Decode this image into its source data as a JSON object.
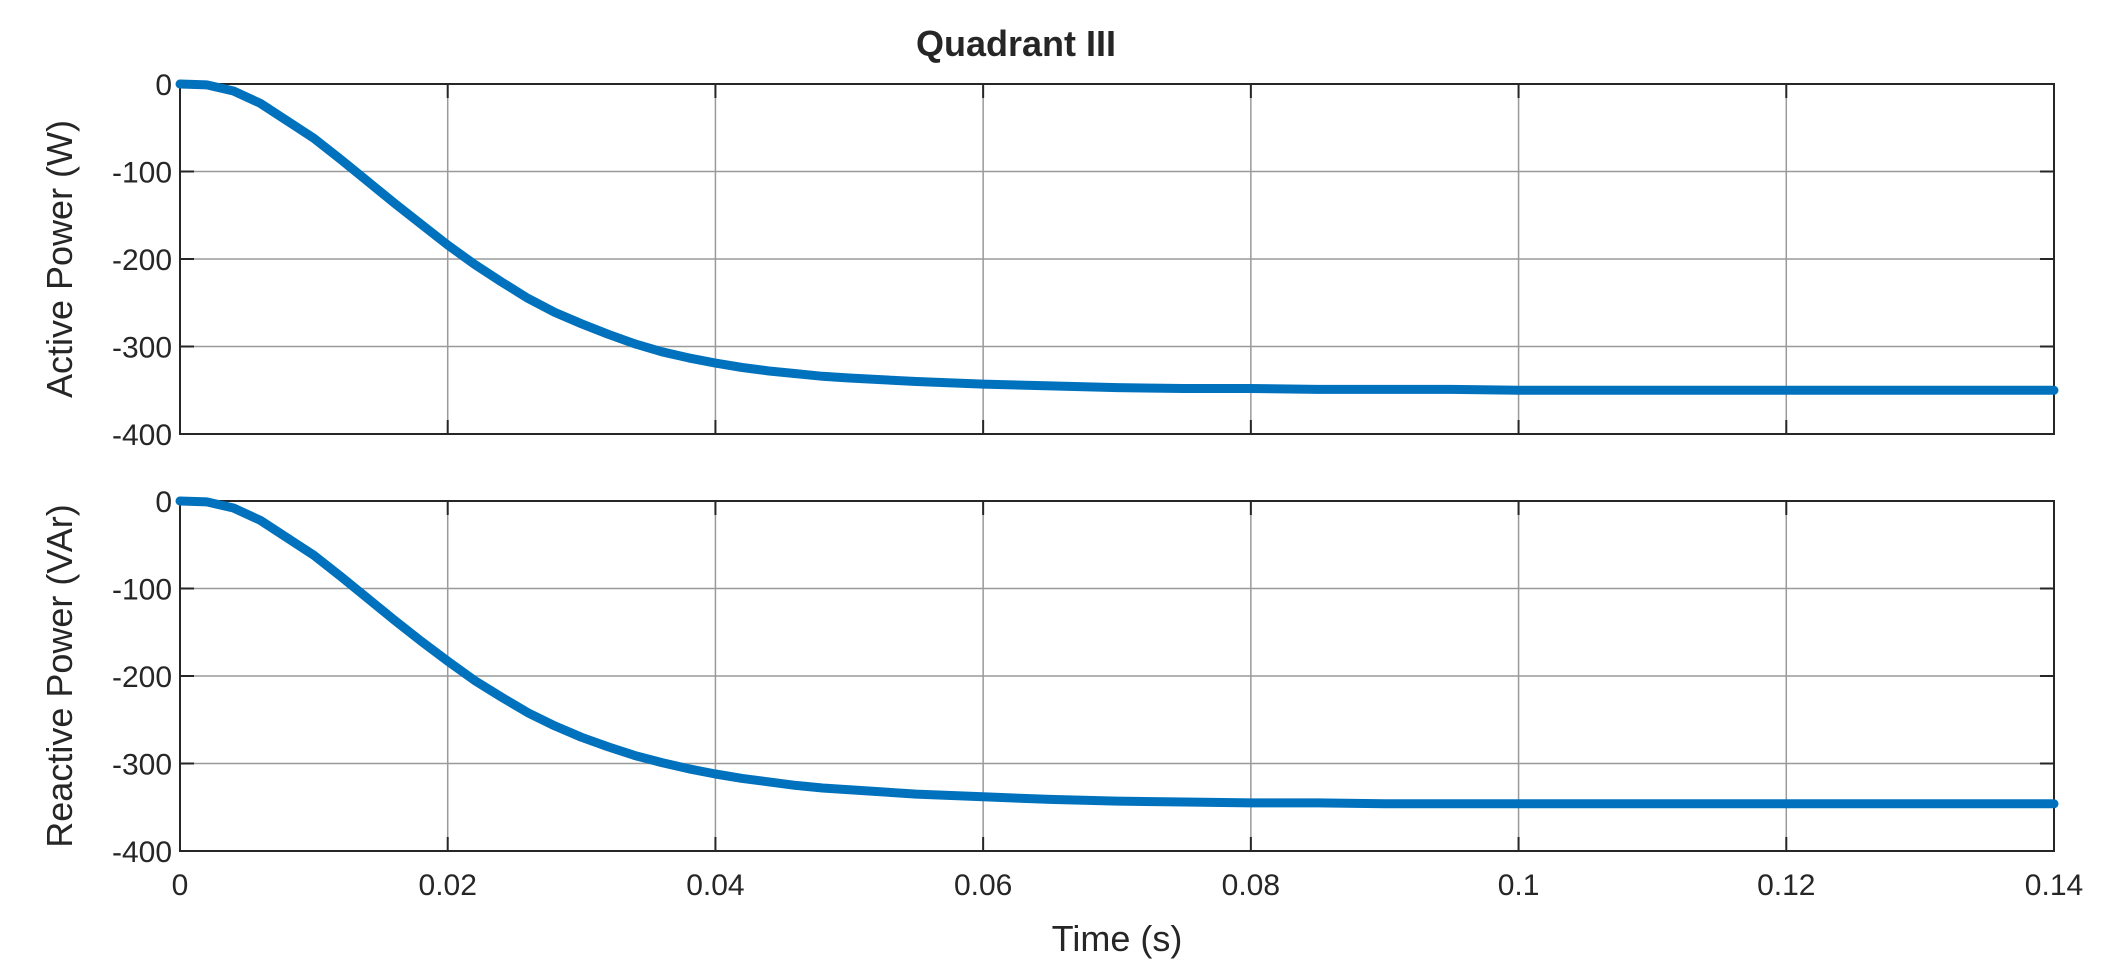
{
  "title": "Quadrant III",
  "line_color": "#0072BD",
  "chart_data": [
    {
      "type": "line",
      "title": "Quadrant III",
      "xlabel": "",
      "ylabel": "Active Power (W)",
      "xlim": [
        0,
        0.14
      ],
      "ylim": [
        -400,
        0
      ],
      "xticks": [
        0,
        0.02,
        0.04,
        0.06,
        0.08,
        0.1,
        0.12,
        0.14
      ],
      "xtick_labels": [
        "",
        "",
        "",
        "",
        "",
        "",
        "",
        ""
      ],
      "yticks": [
        0,
        -100,
        -200,
        -300,
        -400
      ],
      "ytick_labels": [
        "0",
        "-100",
        "-200",
        "-300",
        "-400"
      ],
      "grid": true,
      "series": [
        {
          "color": "#0072BD",
          "x": [
            0,
            0.002,
            0.004,
            0.006,
            0.008,
            0.01,
            0.012,
            0.014,
            0.016,
            0.018,
            0.02,
            0.022,
            0.024,
            0.026,
            0.028,
            0.03,
            0.032,
            0.034,
            0.036,
            0.038,
            0.04,
            0.042,
            0.044,
            0.046,
            0.048,
            0.05,
            0.055,
            0.06,
            0.065,
            0.07,
            0.075,
            0.08,
            0.085,
            0.09,
            0.095,
            0.1,
            0.105,
            0.11,
            0.115,
            0.12,
            0.125,
            0.13,
            0.135,
            0.14
          ],
          "y": [
            0,
            -1,
            -8,
            -22,
            -42,
            -62,
            -86,
            -111,
            -136,
            -160,
            -184,
            -206,
            -226,
            -245,
            -261,
            -274,
            -286,
            -297,
            -306,
            -313,
            -319,
            -324,
            -328,
            -331,
            -334,
            -336,
            -340,
            -343,
            -345,
            -347,
            -348,
            -348,
            -349,
            -349,
            -349,
            -350,
            -350,
            -350,
            -350,
            -350,
            -350,
            -350,
            -350,
            -350
          ]
        }
      ]
    },
    {
      "type": "line",
      "xlabel": "Time (s)",
      "ylabel": "Reactive Power (VAr)",
      "xlim": [
        0,
        0.14
      ],
      "ylim": [
        -400,
        0
      ],
      "xticks": [
        0,
        0.02,
        0.04,
        0.06,
        0.08,
        0.1,
        0.12,
        0.14
      ],
      "xtick_labels": [
        "0",
        "0.02",
        "0.04",
        "0.06",
        "0.08",
        "0.1",
        "0.12",
        "0.14"
      ],
      "yticks": [
        0,
        -100,
        -200,
        -300,
        -400
      ],
      "ytick_labels": [
        "0",
        "-100",
        "-200",
        "-300",
        "-400"
      ],
      "grid": true,
      "series": [
        {
          "color": "#0072BD",
          "x": [
            0,
            0.002,
            0.004,
            0.006,
            0.008,
            0.01,
            0.012,
            0.014,
            0.016,
            0.018,
            0.02,
            0.022,
            0.024,
            0.026,
            0.028,
            0.03,
            0.032,
            0.034,
            0.036,
            0.038,
            0.04,
            0.042,
            0.044,
            0.046,
            0.048,
            0.05,
            0.055,
            0.06,
            0.065,
            0.07,
            0.075,
            0.08,
            0.085,
            0.09,
            0.095,
            0.1,
            0.105,
            0.11,
            0.115,
            0.12,
            0.125,
            0.13,
            0.135,
            0.14
          ],
          "y": [
            0,
            -1,
            -8,
            -22,
            -42,
            -62,
            -86,
            -111,
            -136,
            -160,
            -183,
            -205,
            -224,
            -242,
            -257,
            -270,
            -281,
            -291,
            -299,
            -306,
            -312,
            -317,
            -321,
            -325,
            -328,
            -330,
            -335,
            -338,
            -341,
            -343,
            -344,
            -345,
            -345,
            -346,
            -346,
            -346,
            -346,
            -346,
            -346,
            -346,
            -346,
            -346,
            -346,
            -346
          ]
        }
      ]
    }
  ]
}
